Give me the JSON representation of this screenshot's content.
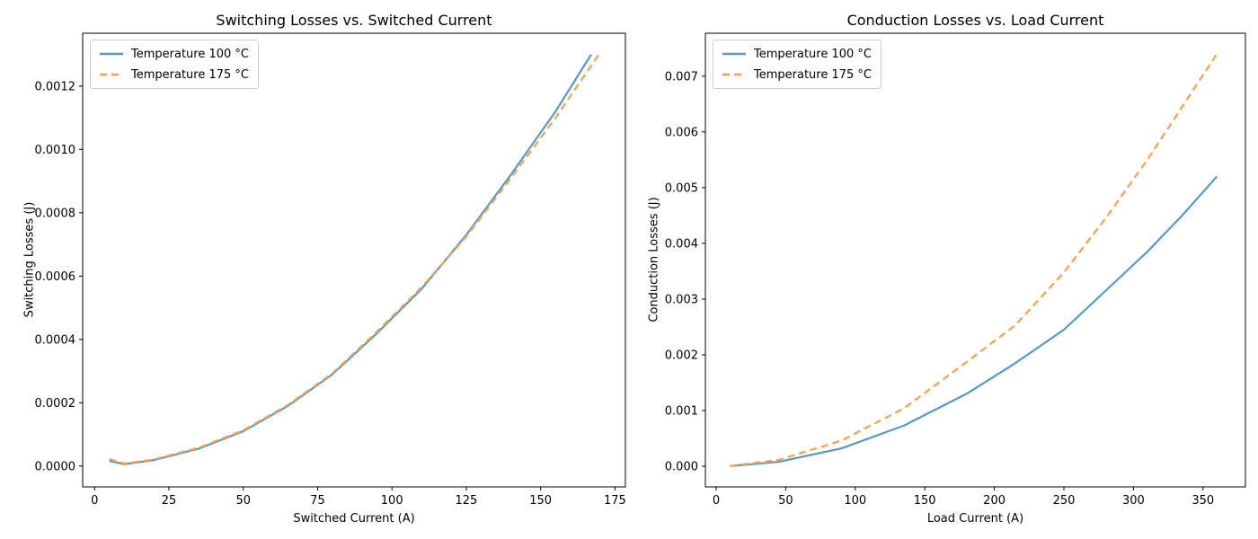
{
  "page": {
    "background": "#ffffff"
  },
  "colors": {
    "series_100c": "#5799c7",
    "series_175c": "#ff9f4a",
    "spine": "#000000",
    "tick": "#000000",
    "text": "#000000",
    "legend_border": "#cccccc"
  },
  "chart_data": [
    {
      "type": "line",
      "title": "Switching Losses vs. Switched Current",
      "xlabel": "Switched Current (A)",
      "ylabel": "Switching Losses (J)",
      "xlim": [
        -4.0,
        178.5
      ],
      "ylim": [
        -6.58e-05,
        0.001367
      ],
      "grid": false,
      "legend_position": "upper-left",
      "xticks": [
        0,
        25,
        50,
        75,
        100,
        125,
        150,
        175
      ],
      "xtick_labels": [
        "0",
        "25",
        "50",
        "75",
        "100",
        "125",
        "150",
        "175"
      ],
      "yticks": [
        0.0,
        0.0002,
        0.0004,
        0.0006,
        0.0008,
        0.001,
        0.0012
      ],
      "ytick_labels": [
        "0.0000",
        "0.0002",
        "0.0004",
        "0.0006",
        "0.0008",
        "0.0010",
        "0.0012"
      ],
      "series": [
        {
          "name": "Temperature 100 °C",
          "style": "solid",
          "color_key": "series_100c",
          "x": [
            5,
            10,
            20,
            35,
            50,
            65,
            80,
            95,
            110,
            125,
            140,
            155,
            167
          ],
          "y": [
            1.6e-05,
            6e-06,
            1.9e-05,
            5.5e-05,
            0.00011,
            0.00019,
            0.00029,
            0.00042,
            0.00056,
            0.00073,
            0.00092,
            0.00112,
            0.0013
          ]
        },
        {
          "name": "Temperature 175 °C",
          "style": "dashed",
          "color_key": "series_175c",
          "x": [
            5,
            10,
            20,
            35,
            50,
            65,
            80,
            95,
            110,
            125,
            140,
            155,
            170
          ],
          "y": [
            2.2e-05,
            8e-06,
            2.1e-05,
            5.8e-05,
            0.000113,
            0.000193,
            0.000293,
            0.000425,
            0.000565,
            0.000725,
            0.00091,
            0.0011,
            0.001306
          ]
        }
      ]
    },
    {
      "type": "line",
      "title": "Conduction Losses vs. Load Current",
      "xlabel": "Load Current (A)",
      "ylabel": "Conduction Losses (J)",
      "xlim": [
        -7.75,
        380.5
      ],
      "ylim": [
        -0.00037,
        0.00777
      ],
      "grid": false,
      "legend_position": "upper-left",
      "xticks": [
        0,
        50,
        100,
        150,
        200,
        250,
        300,
        350
      ],
      "xtick_labels": [
        "0",
        "50",
        "100",
        "150",
        "200",
        "250",
        "300",
        "350"
      ],
      "yticks": [
        0.0,
        0.001,
        0.002,
        0.003,
        0.004,
        0.005,
        0.006,
        0.007
      ],
      "ytick_labels": [
        "0.000",
        "0.001",
        "0.002",
        "0.003",
        "0.004",
        "0.005",
        "0.006",
        "0.007"
      ],
      "series": [
        {
          "name": "Temperature 100 °C",
          "style": "solid",
          "color_key": "series_100c",
          "x": [
            10,
            45,
            90,
            135,
            180,
            215,
            250,
            280,
            310,
            335,
            360
          ],
          "y": [
            4e-06,
            8e-05,
            0.00032,
            0.00073,
            0.0013,
            0.00185,
            0.00245,
            0.00315,
            0.00385,
            0.0045,
            0.0052
          ]
        },
        {
          "name": "Temperature 175 °C",
          "style": "dashed",
          "color_key": "series_175c",
          "x": [
            10,
            45,
            90,
            135,
            180,
            215,
            250,
            280,
            310,
            335,
            360
          ],
          "y": [
            6e-06,
            0.000115,
            0.00046,
            0.00104,
            0.00187,
            0.00253,
            0.00348,
            0.00445,
            0.0055,
            0.00645,
            0.0074
          ]
        }
      ]
    }
  ]
}
